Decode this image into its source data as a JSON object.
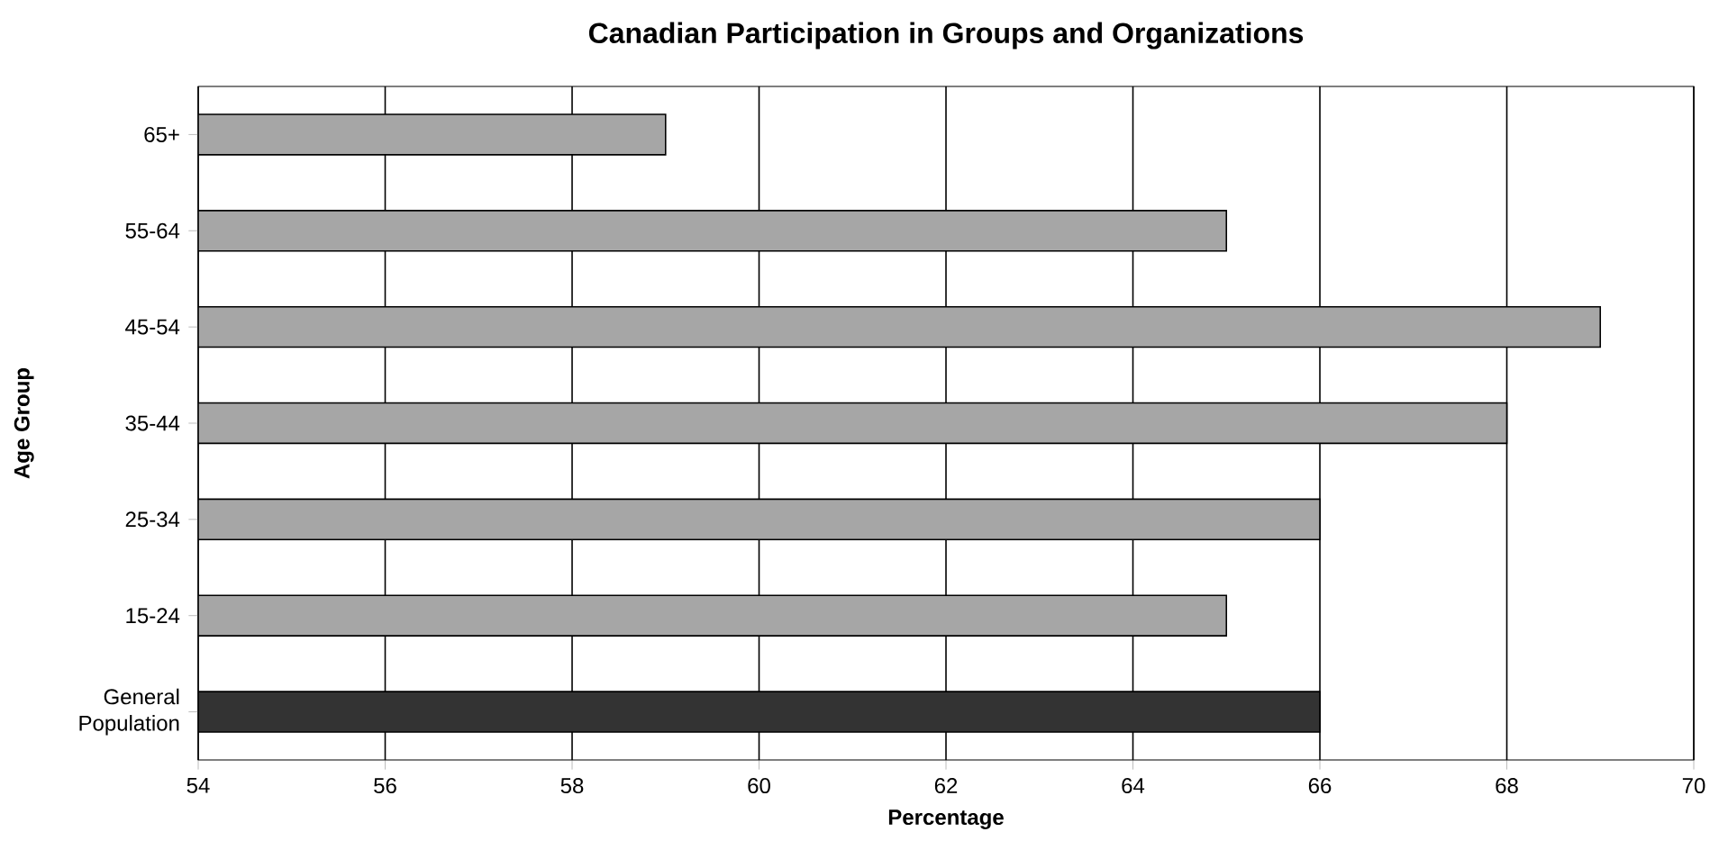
{
  "chart_data": {
    "type": "bar",
    "orientation": "horizontal",
    "title": "Canadian Participation in Groups and Organizations",
    "xlabel": "Percentage",
    "ylabel": "Age Group",
    "categories": [
      "65+",
      "55-64",
      "45-54",
      "35-44",
      "25-34",
      "15-24",
      "General Population"
    ],
    "values": [
      59,
      65,
      69,
      68,
      66,
      65,
      66
    ],
    "colors": [
      "#a6a6a6",
      "#a6a6a6",
      "#a6a6a6",
      "#a6a6a6",
      "#a6a6a6",
      "#a6a6a6",
      "#333333"
    ],
    "xlim": [
      54,
      70
    ],
    "xticks": [
      54,
      56,
      58,
      60,
      62,
      64,
      66,
      68,
      70
    ],
    "grid": "x"
  }
}
